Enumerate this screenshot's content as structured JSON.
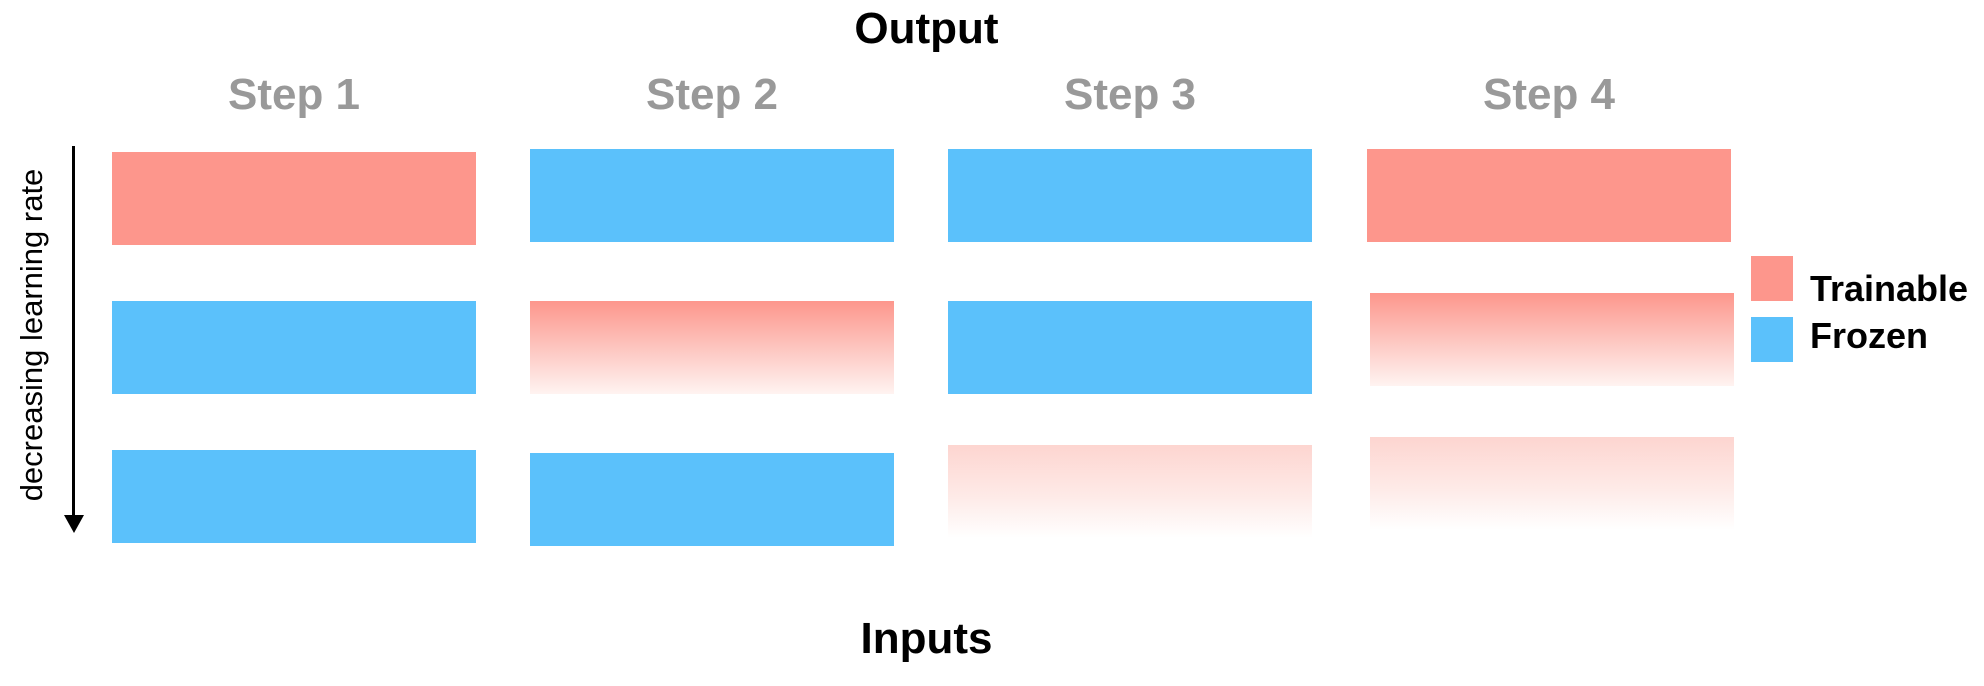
{
  "diagram": {
    "title_top": "Output",
    "title_bottom": "Inputs",
    "axis_label": "decreasing learning rate",
    "steps": [
      {
        "label": "Step 1",
        "blocks": [
          "trainable",
          "frozen",
          "frozen"
        ]
      },
      {
        "label": "Step 2",
        "blocks": [
          "frozen",
          "trainable-faded",
          "frozen"
        ]
      },
      {
        "label": "Step 3",
        "blocks": [
          "frozen",
          "frozen",
          "trainable-faded-more"
        ]
      },
      {
        "label": "Step 4",
        "blocks": [
          "trainable",
          "trainable-faded",
          "trainable-faded-more"
        ]
      }
    ]
  },
  "legend": {
    "items": [
      {
        "label": "Trainable",
        "color": "#fd968c"
      },
      {
        "label": "Frozen",
        "color": "#5bc1fb"
      }
    ]
  }
}
